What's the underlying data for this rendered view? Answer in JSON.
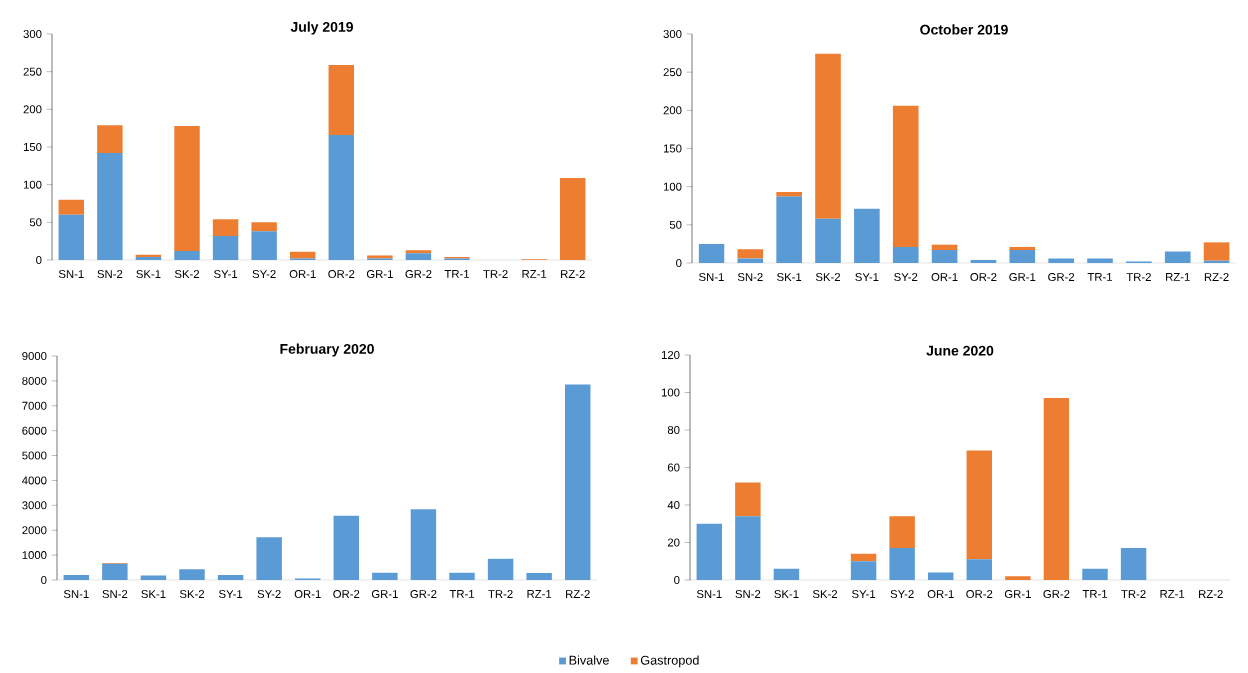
{
  "chart_data": [
    {
      "type": "bar",
      "stacked": true,
      "title": "July 2019",
      "categories": [
        "SN-1",
        "SN-2",
        "SK-1",
        "SK-2",
        "SY-1",
        "SY-2",
        "OR-1",
        "OR-2",
        "GR-1",
        "GR-2",
        "TR-1",
        "TR-2",
        "RZ-1",
        "RZ-2"
      ],
      "ylim": [
        0,
        300
      ],
      "yticks": [
        0,
        50,
        100,
        150,
        200,
        250,
        300
      ],
      "series": [
        {
          "color": "#5b9bd5",
          "values": [
            60,
            142,
            4,
            12,
            32,
            38,
            2,
            166,
            2,
            9,
            2,
            0,
            0,
            0
          ]
        },
        {
          "color": "#ed7d31",
          "values": [
            20,
            37,
            3,
            166,
            22,
            12,
            9,
            93,
            4,
            4,
            2,
            0,
            1,
            109
          ]
        }
      ]
    },
    {
      "type": "bar",
      "stacked": true,
      "title": "October 2019",
      "categories": [
        "SN-1",
        "SN-2",
        "SK-1",
        "SK-2",
        "SY-1",
        "SY-2",
        "OR-1",
        "OR-2",
        "GR-1",
        "GR-2",
        "TR-1",
        "TR-2",
        "RZ-1",
        "RZ-2"
      ],
      "ylim": [
        0,
        300
      ],
      "yticks": [
        0,
        50,
        100,
        150,
        200,
        250,
        300
      ],
      "series": [
        {
          "color": "#5b9bd5",
          "values": [
            25,
            6,
            87,
            58,
            71,
            21,
            17,
            4,
            17,
            6,
            6,
            2,
            15,
            3
          ]
        },
        {
          "color": "#ed7d31",
          "values": [
            0,
            12,
            6,
            216,
            0,
            185,
            7,
            0,
            4,
            0,
            0,
            0,
            0,
            24
          ]
        }
      ]
    },
    {
      "type": "bar",
      "stacked": true,
      "title": "February 2020",
      "categories": [
        "SN-1",
        "SN-2",
        "SK-1",
        "SK-2",
        "SY-1",
        "SY-2",
        "OR-1",
        "OR-2",
        "GR-1",
        "GR-2",
        "TR-1",
        "TR-2",
        "RZ-1",
        "RZ-2"
      ],
      "ylim": [
        0,
        9000
      ],
      "yticks": [
        0,
        1000,
        2000,
        3000,
        4000,
        5000,
        6000,
        7000,
        8000,
        9000
      ],
      "series": [
        {
          "color": "#5b9bd5",
          "values": [
            200,
            650,
            180,
            430,
            200,
            1720,
            60,
            2580,
            290,
            2840,
            290,
            850,
            280,
            7850
          ]
        },
        {
          "color": "#ed7d31",
          "values": [
            0,
            30,
            0,
            0,
            0,
            0,
            0,
            0,
            0,
            0,
            0,
            0,
            0,
            0
          ]
        }
      ]
    },
    {
      "type": "bar",
      "stacked": true,
      "title": "June 2020",
      "legend": "bottom",
      "categories": [
        "SN-1",
        "SN-2",
        "SK-1",
        "SK-2",
        "SY-1",
        "SY-2",
        "OR-1",
        "OR-2",
        "GR-1",
        "GR-2",
        "TR-1",
        "TR-2",
        "RZ-1",
        "RZ-2"
      ],
      "ylim": [
        0,
        120
      ],
      "yticks": [
        0,
        20,
        40,
        60,
        80,
        100,
        120
      ],
      "series": [
        {
          "name": "Bivalve",
          "color": "#5b9bd5",
          "values": [
            30,
            34,
            6,
            0,
            10,
            17,
            4,
            11,
            0,
            0,
            6,
            17,
            0,
            0
          ]
        },
        {
          "name": "Gastropod",
          "color": "#ed7d31",
          "values": [
            0,
            18,
            0,
            0,
            4,
            17,
            0,
            58,
            2,
            97,
            0,
            0,
            0,
            0
          ]
        }
      ]
    }
  ]
}
